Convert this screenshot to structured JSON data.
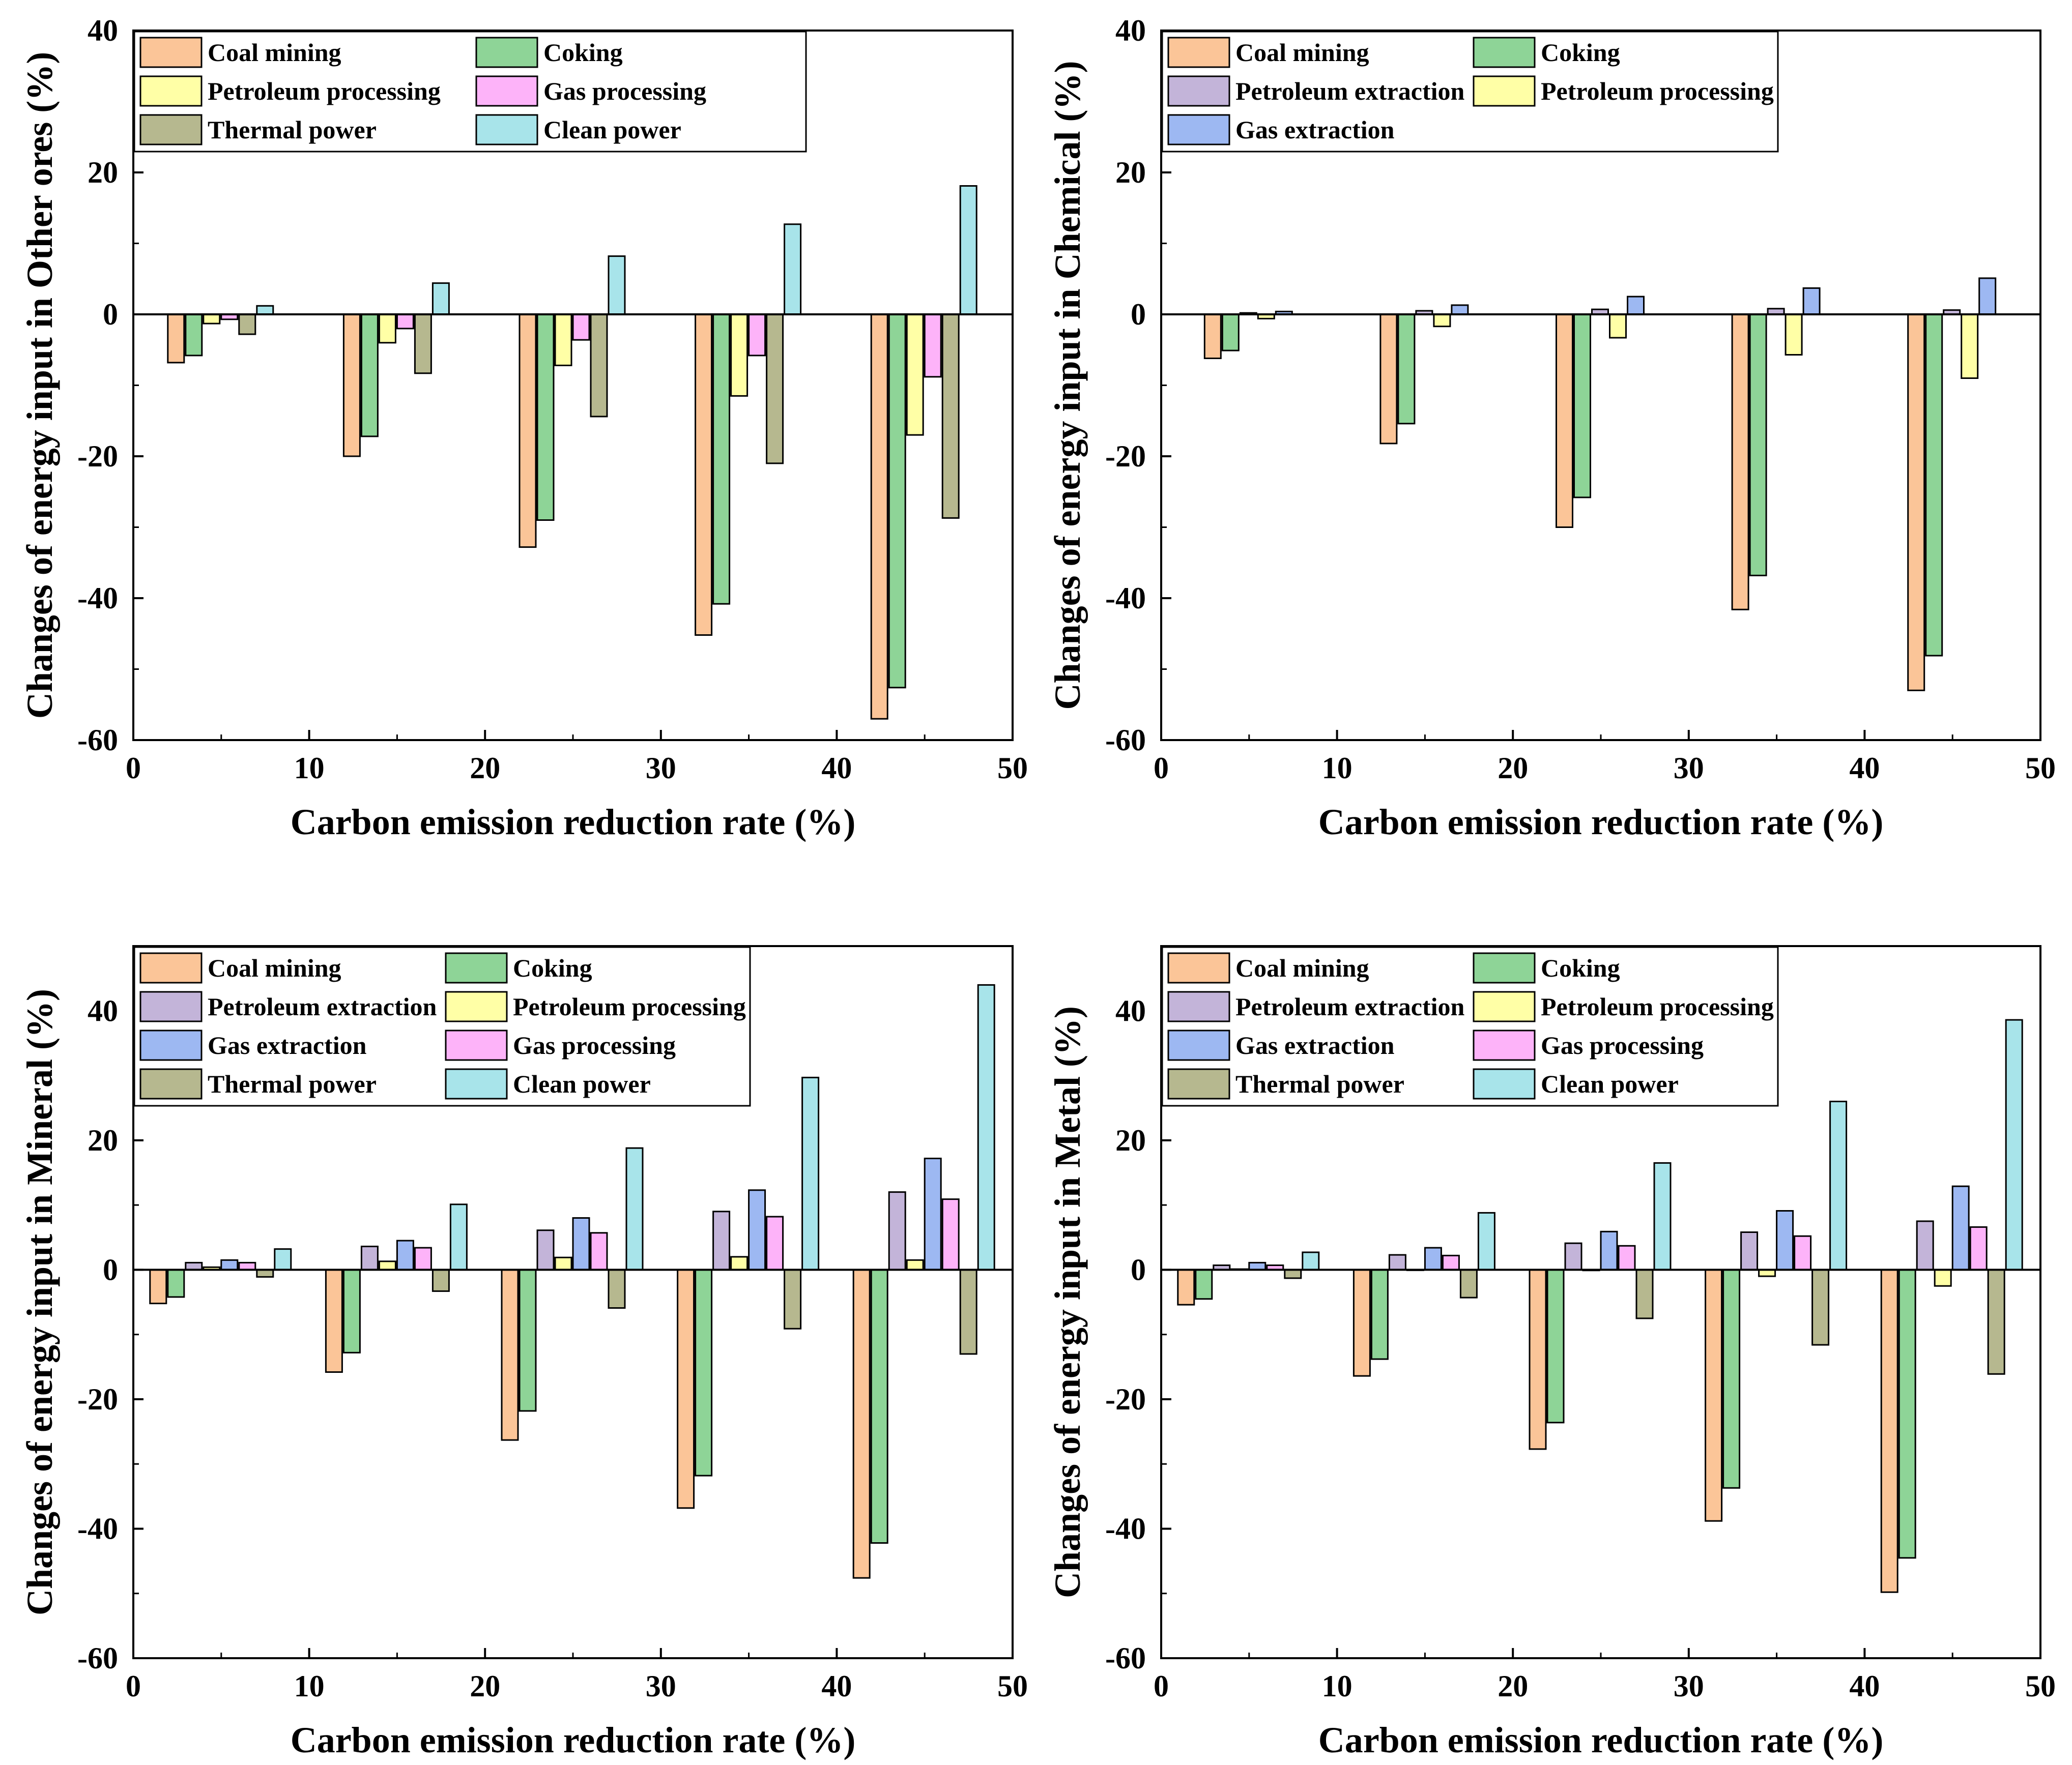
{
  "colors": {
    "Coal mining": "#FBC598",
    "Coking": "#8ED497",
    "Petroleum extraction": "#C3B4D9",
    "Petroleum processing": "#FFFFA6",
    "Gas extraction": "#9DB8F2",
    "Gas processing": "#FDB3F9",
    "Thermal power": "#B6B88F",
    "Clean power": "#A8E4EA"
  },
  "chart_data": [
    {
      "id": "other-ores",
      "type": "bar",
      "xlabel": "Carbon emission reduction rate (%)",
      "ylabel": "Changes of energy input in Other ores (%)",
      "xlim": [
        0,
        50
      ],
      "ylim": [
        -60,
        40
      ],
      "xticks": [
        0,
        10,
        20,
        30,
        40,
        50
      ],
      "yticks": [
        -60,
        -40,
        -20,
        0,
        20,
        40
      ],
      "legend_cols": 2,
      "categories": [
        5,
        15,
        25,
        35,
        45
      ],
      "series": [
        {
          "name": "Coal mining",
          "values": [
            -6.8,
            -20,
            -32.8,
            -45.2,
            -57
          ]
        },
        {
          "name": "Coking",
          "values": [
            -5.8,
            -17.2,
            -29,
            -40.8,
            -52.6
          ]
        },
        {
          "name": "Petroleum processing",
          "values": [
            -1.3,
            -4,
            -7.2,
            -11.5,
            -17
          ]
        },
        {
          "name": "Gas processing",
          "values": [
            -0.7,
            -2,
            -3.6,
            -5.8,
            -8.8
          ]
        },
        {
          "name": "Thermal power",
          "values": [
            -2.8,
            -8.3,
            -14.4,
            -21,
            -28.7
          ]
        },
        {
          "name": "Clean power",
          "values": [
            1.2,
            4.4,
            8.2,
            12.7,
            18.1
          ]
        }
      ]
    },
    {
      "id": "chemical",
      "type": "bar",
      "xlabel": "Carbon emission reduction rate (%)",
      "ylabel": "Changes of energy input in Chemical (%)",
      "xlim": [
        0,
        50
      ],
      "ylim": [
        -60,
        40
      ],
      "xticks": [
        0,
        10,
        20,
        30,
        40,
        50
      ],
      "yticks": [
        -60,
        -40,
        -20,
        0,
        20,
        40
      ],
      "legend_cols": 2,
      "categories": [
        5,
        15,
        25,
        35,
        45
      ],
      "series": [
        {
          "name": "Coal mining",
          "values": [
            -6.2,
            -18.2,
            -30,
            -41.6,
            -53
          ]
        },
        {
          "name": "Coking",
          "values": [
            -5.1,
            -15.4,
            -25.8,
            -36.8,
            -48.1
          ]
        },
        {
          "name": "Petroleum extraction",
          "values": [
            0.2,
            0.5,
            0.7,
            0.8,
            0.6
          ]
        },
        {
          "name": "Petroleum processing",
          "values": [
            -0.6,
            -1.7,
            -3.3,
            -5.7,
            -9
          ]
        },
        {
          "name": "Gas extraction",
          "values": [
            0.4,
            1.3,
            2.5,
            3.7,
            5.1
          ]
        }
      ]
    },
    {
      "id": "mineral",
      "type": "bar",
      "xlabel": "Carbon emission reduction rate (%)",
      "ylabel": "Changes of energy input in Mineral (%)",
      "xlim": [
        0,
        50
      ],
      "ylim": [
        -60,
        50
      ],
      "xticks": [
        0,
        10,
        20,
        30,
        40,
        50
      ],
      "yticks": [
        -60,
        -40,
        -20,
        0,
        20,
        40
      ],
      "legend_cols": 2,
      "categories": [
        5,
        15,
        25,
        35,
        45
      ],
      "series": [
        {
          "name": "Coal mining",
          "values": [
            -5.2,
            -15.8,
            -26.3,
            -36.8,
            -47.6
          ]
        },
        {
          "name": "Coking",
          "values": [
            -4.2,
            -12.8,
            -21.8,
            -31.8,
            -42.2
          ]
        },
        {
          "name": "Petroleum extraction",
          "values": [
            1.1,
            3.6,
            6.1,
            9,
            12
          ]
        },
        {
          "name": "Petroleum processing",
          "values": [
            0.4,
            1.3,
            1.9,
            2,
            1.5
          ]
        },
        {
          "name": "Gas extraction",
          "values": [
            1.5,
            4.5,
            8,
            12.3,
            17.2
          ]
        },
        {
          "name": "Gas processing",
          "values": [
            1.1,
            3.4,
            5.7,
            8.2,
            10.9
          ]
        },
        {
          "name": "Thermal power",
          "values": [
            -1.1,
            -3.3,
            -5.9,
            -9.1,
            -13
          ]
        },
        {
          "name": "Clean power",
          "values": [
            3.2,
            10.1,
            18.8,
            29.7,
            44
          ]
        }
      ]
    },
    {
      "id": "metal",
      "type": "bar",
      "xlabel": "Carbon emission reduction rate (%)",
      "ylabel": "Changes of energy input in Metal (%)",
      "xlim": [
        0,
        50
      ],
      "ylim": [
        -60,
        50
      ],
      "xticks": [
        0,
        10,
        20,
        30,
        40,
        50
      ],
      "yticks": [
        -60,
        -40,
        -20,
        0,
        20,
        40
      ],
      "legend_cols": 2,
      "categories": [
        5,
        15,
        25,
        35,
        45
      ],
      "series": [
        {
          "name": "Coal mining",
          "values": [
            -5.4,
            -16.4,
            -27.7,
            -38.8,
            -49.8
          ]
        },
        {
          "name": "Coking",
          "values": [
            -4.5,
            -13.8,
            -23.6,
            -33.7,
            -44.5
          ]
        },
        {
          "name": "Petroleum extraction",
          "values": [
            0.7,
            2.3,
            4.1,
            5.8,
            7.5
          ]
        },
        {
          "name": "Petroleum processing",
          "values": [
            0.1,
            0,
            -0.1,
            -1,
            -2.5
          ]
        },
        {
          "name": "Gas extraction",
          "values": [
            1.1,
            3.4,
            5.9,
            9.1,
            12.9
          ]
        },
        {
          "name": "Gas processing",
          "values": [
            0.7,
            2.2,
            3.7,
            5.2,
            6.6
          ]
        },
        {
          "name": "Thermal power",
          "values": [
            -1.3,
            -4.3,
            -7.5,
            -11.6,
            -16.1
          ]
        },
        {
          "name": "Clean power",
          "values": [
            2.7,
            8.8,
            16.5,
            26,
            38.6
          ]
        }
      ]
    }
  ]
}
